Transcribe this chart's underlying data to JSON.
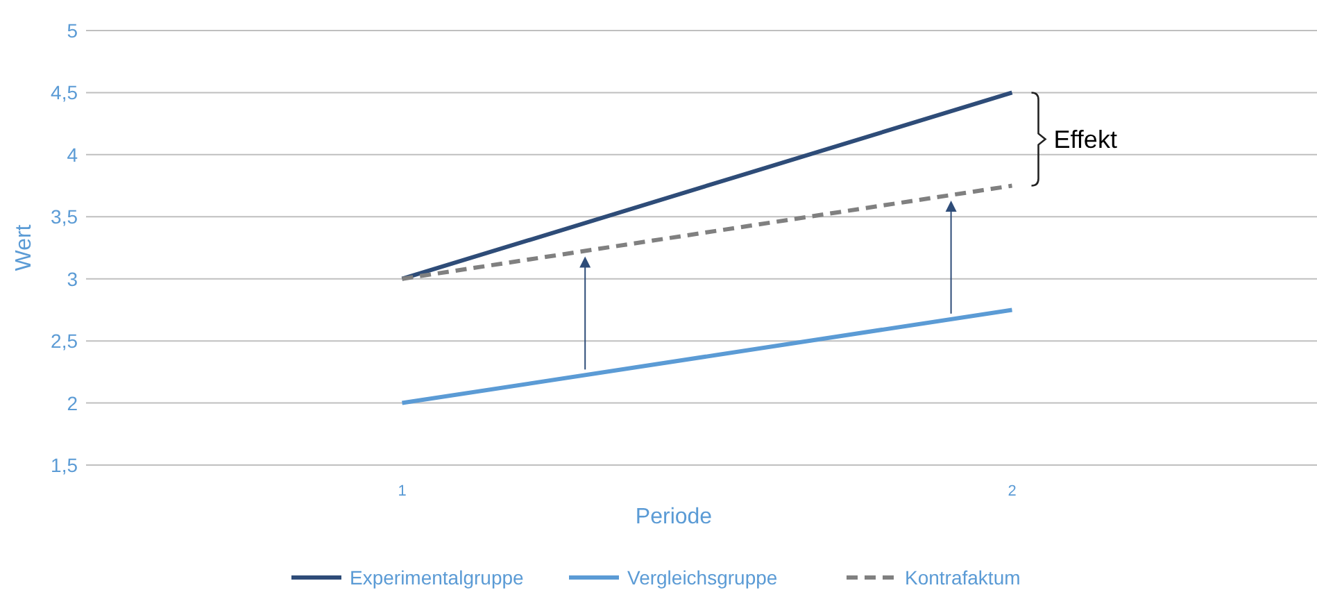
{
  "chart_data": {
    "type": "line",
    "xlabel": "Periode",
    "ylabel": "Wert",
    "categories": [
      "1",
      "2"
    ],
    "series": [
      {
        "name": "Experimentalgruppe",
        "color": "#2e4c78",
        "values": [
          3,
          4.5
        ]
      },
      {
        "name": "Vergleichsgruppe",
        "color": "#5b9bd5",
        "values": [
          2,
          2.75
        ]
      },
      {
        "name": "Kontrafaktum",
        "color": "#808080",
        "values": [
          3,
          3.75
        ],
        "line_style": "dashed"
      }
    ],
    "ylim": [
      1.5,
      5
    ],
    "yticks": [
      {
        "value": 1.5,
        "label": "1,5"
      },
      2,
      {
        "value": 2.5,
        "label": "2,5"
      },
      3,
      {
        "value": 3.5,
        "label": "3,5"
      },
      4,
      {
        "value": 4.5,
        "label": "4,5"
      },
      5
    ],
    "grid": "y",
    "legend": "bottom",
    "annotations": [
      "Effekt"
    ]
  }
}
